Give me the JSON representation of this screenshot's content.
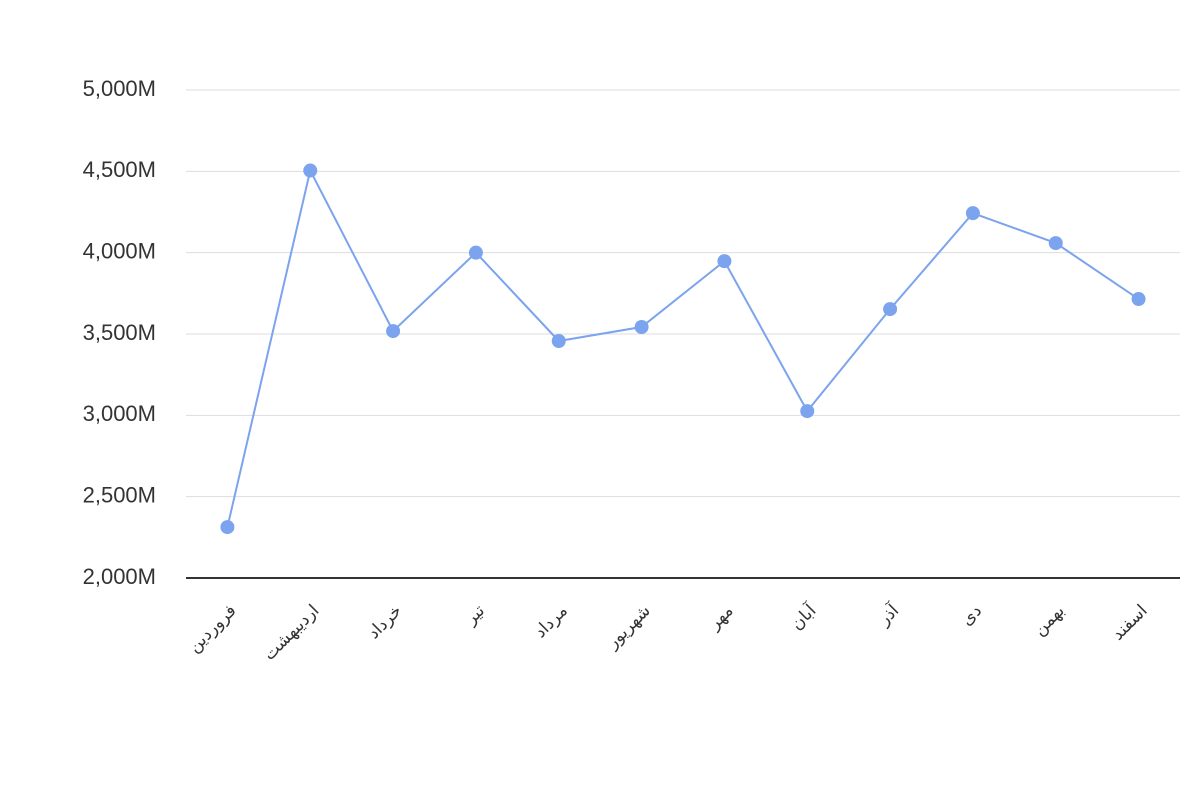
{
  "chart_data": {
    "type": "line",
    "categories": [
      "فروردین",
      "اردیبهشت",
      "خرداد",
      "تیر",
      "مرداد",
      "شهریور",
      "مهر",
      "آبان",
      "آذر",
      "دی",
      "بهمن",
      "اسفند"
    ],
    "series": [
      {
        "color": "#7ba3ee",
        "values": [
          2313,
          4505,
          3518,
          4000,
          3457,
          3543,
          3948,
          3026,
          3653,
          4243,
          4059,
          3715
        ]
      }
    ],
    "ylim": [
      2000,
      5000
    ],
    "yticks": [
      {
        "value": 2000,
        "label": "2,000M"
      },
      {
        "value": 2500,
        "label": "2,500M"
      },
      {
        "value": 3000,
        "label": "3,000M"
      },
      {
        "value": 3500,
        "label": "3,500M"
      },
      {
        "value": 4000,
        "label": "4,000M"
      },
      {
        "value": 4500,
        "label": "4,500M"
      },
      {
        "value": 5000,
        "label": "5,000M"
      }
    ],
    "grid": true
  }
}
